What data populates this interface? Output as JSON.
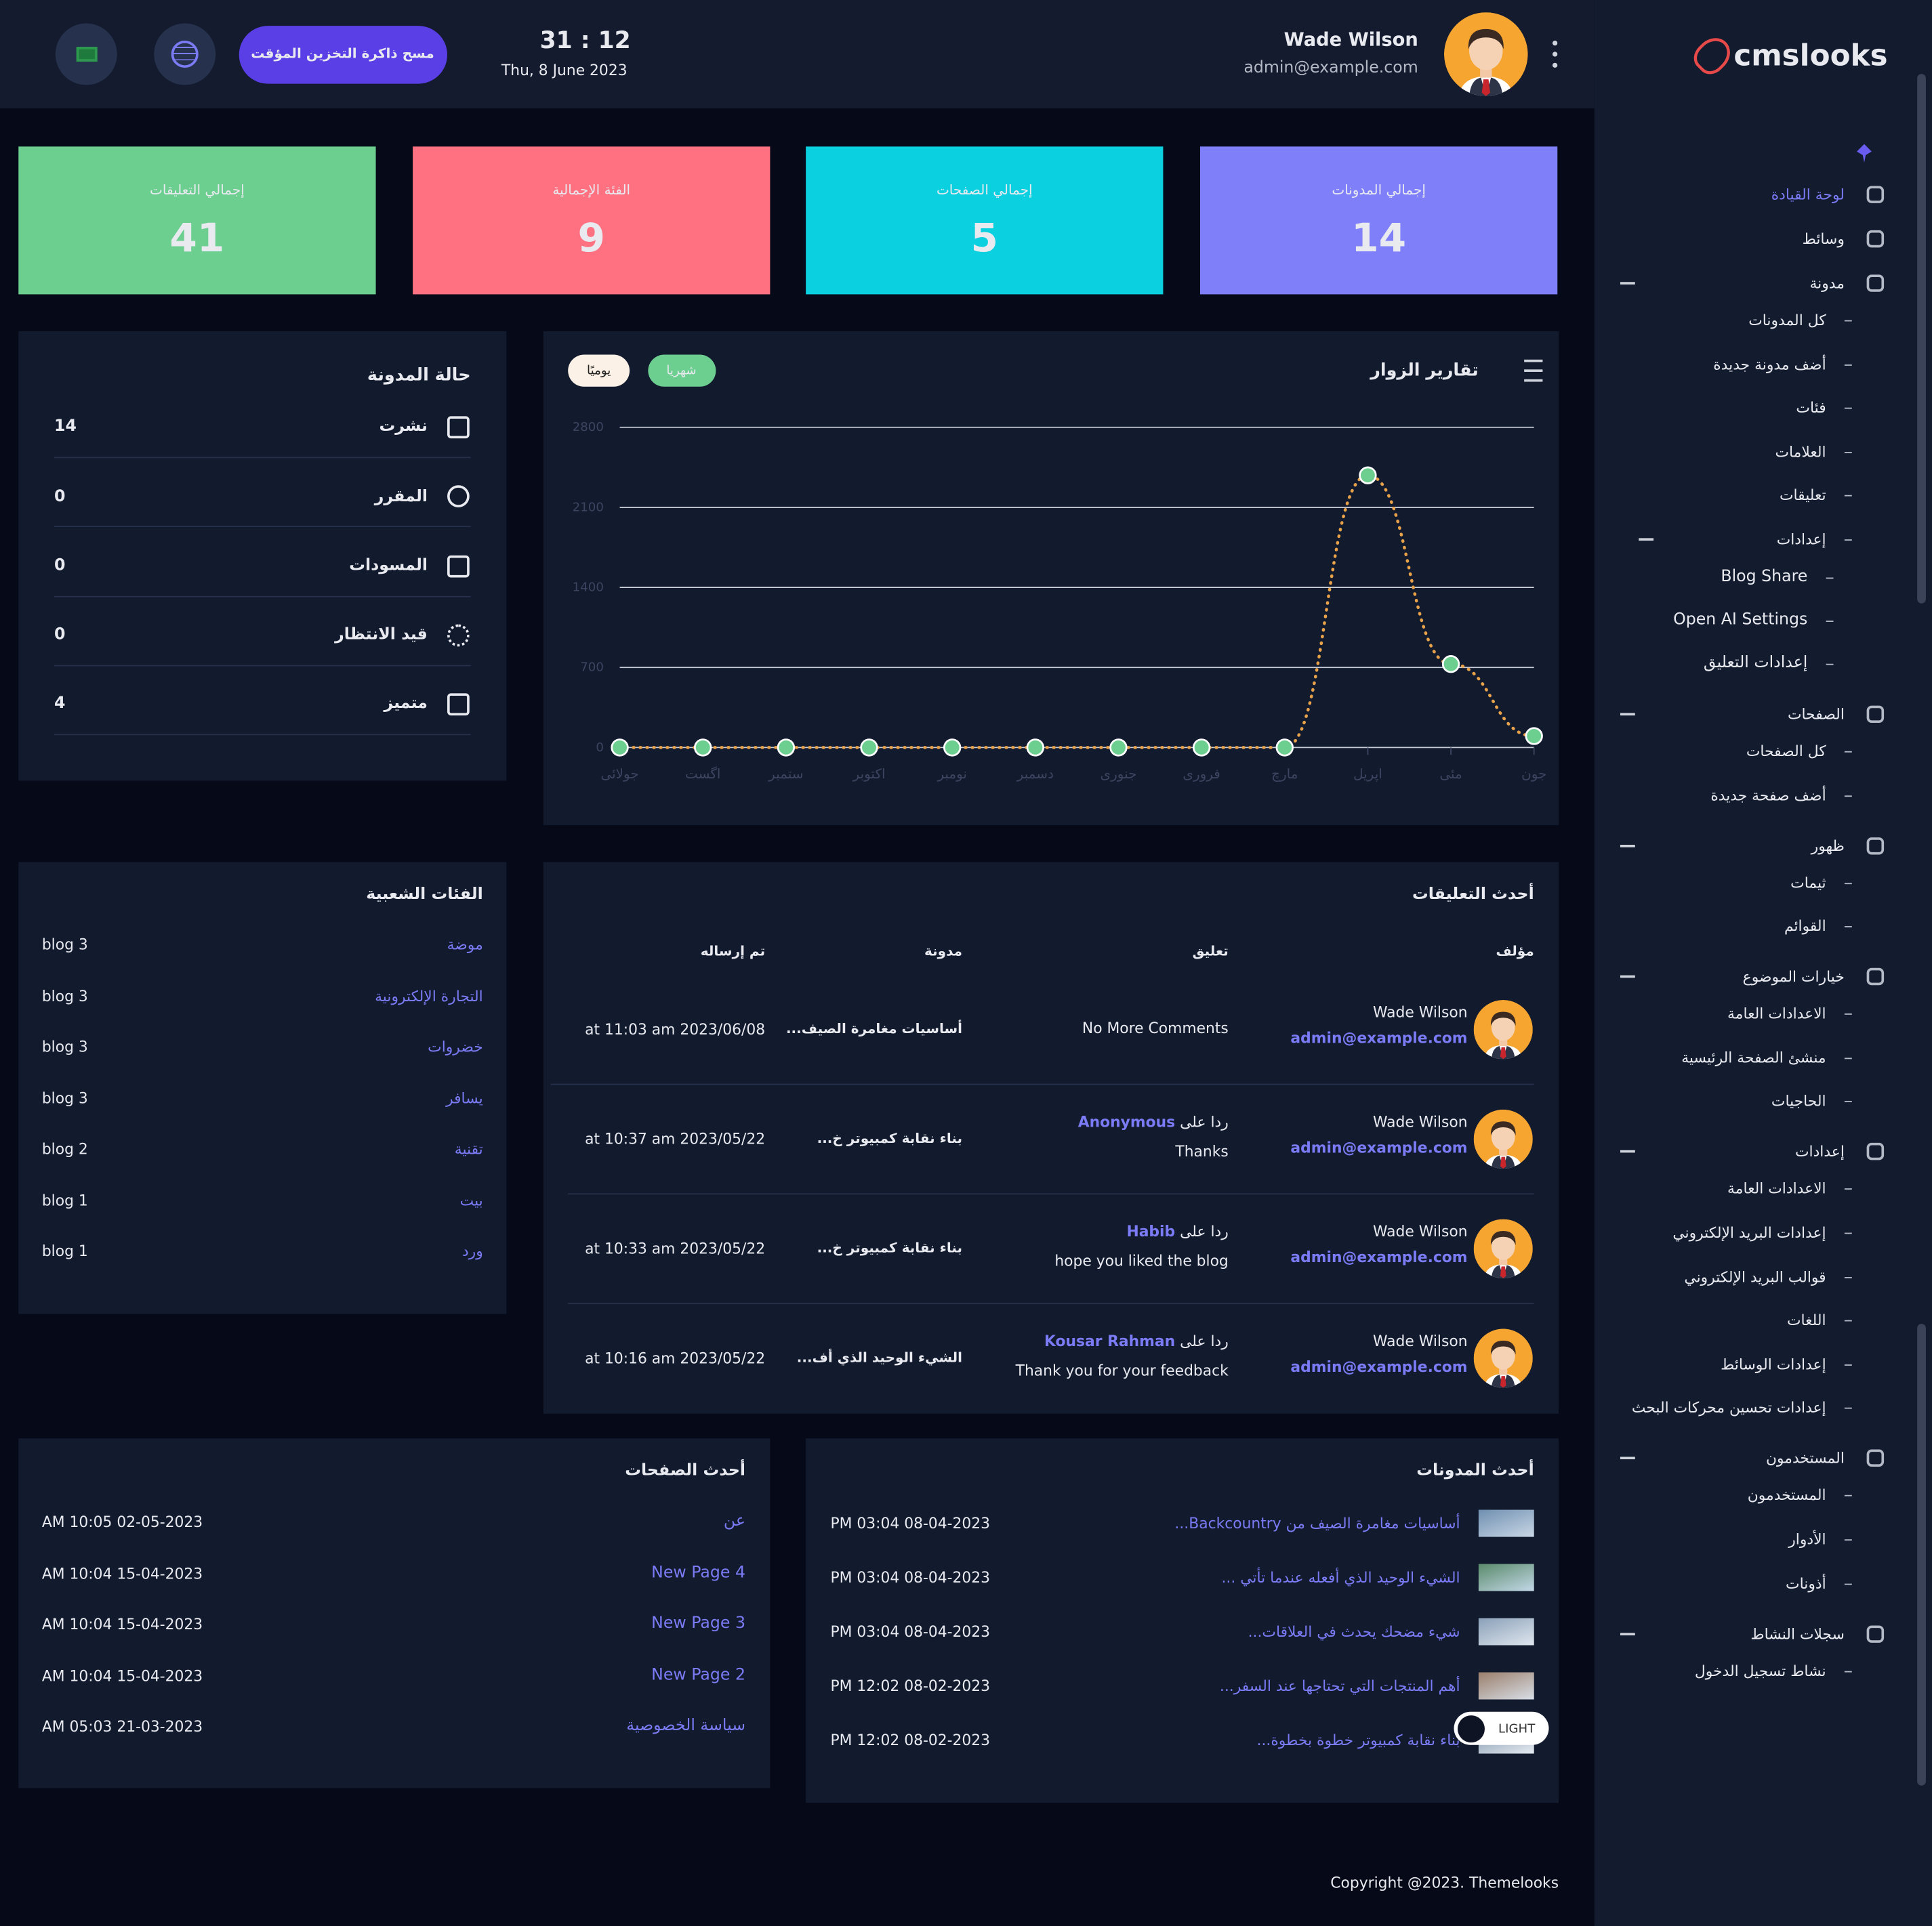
{
  "header": {
    "logo": "cmslooks",
    "clear_cache": "مسح ذاكرة التخزين المؤقت",
    "time": "31 : 12",
    "date": "Thu, 8 June 2023",
    "user_name": "Wade Wilson",
    "user_email": "admin@example.com"
  },
  "sidebar": [
    {
      "label": "لوحة القيادة"
    },
    {
      "label": "وسائط"
    },
    {
      "label": "مدونة",
      "children": [
        {
          "label": "كل المدونات"
        },
        {
          "label": "أضف مدونة جديدة"
        },
        {
          "label": "فئات"
        },
        {
          "label": "العلامات"
        },
        {
          "label": "تعليقات"
        },
        {
          "label": "إعدادات",
          "children": [
            {
              "label": "Blog Share"
            },
            {
              "label": "Open AI Settings"
            },
            {
              "label": "إعدادات التعليق"
            }
          ]
        }
      ]
    },
    {
      "label": "الصفحات",
      "children": [
        {
          "label": "كل الصفحات"
        },
        {
          "label": "أضف صفحة جديدة"
        }
      ]
    },
    {
      "label": "ظهور",
      "children": [
        {
          "label": "ثيمات"
        },
        {
          "label": "القوائم"
        }
      ]
    },
    {
      "label": "خيارات الموضوع",
      "children": [
        {
          "label": "الاعدادات العامة"
        },
        {
          "label": "منشئ الصفحة الرئيسية"
        },
        {
          "label": "الحاجيات"
        }
      ]
    },
    {
      "label": "إعدادات",
      "children": [
        {
          "label": "الاعدادات العامة"
        },
        {
          "label": "إعدادات البريد الإلكتروني"
        },
        {
          "label": "قوالب البريد الإلكتروني"
        },
        {
          "label": "اللغات"
        },
        {
          "label": "إعدادات الوسائط"
        },
        {
          "label": "إعدادات تحسين محركات البحث"
        }
      ]
    },
    {
      "label": "المستخدمون",
      "children": [
        {
          "label": "المستخدمون"
        },
        {
          "label": "الأدوار"
        },
        {
          "label": "أذونات"
        }
      ]
    },
    {
      "label": "سجلات النشاط",
      "children": [
        {
          "label": "نشاط تسجيل الدخول"
        }
      ]
    }
  ],
  "stats": [
    {
      "label": "إجمالي المدونات",
      "value": 14
    },
    {
      "label": "إجمالي الصفحات",
      "value": 5
    },
    {
      "label": "الفئة الإجمالية",
      "value": 9
    },
    {
      "label": "إجمالي التعليقات",
      "value": 41
    }
  ],
  "blog_status": {
    "title": "حالة المدونة",
    "rows": [
      {
        "label": "نشرت",
        "value": 14
      },
      {
        "label": "المقرر",
        "value": 0
      },
      {
        "label": "المسودات",
        "value": 0
      },
      {
        "label": "قيد الانتظار",
        "value": 0
      },
      {
        "label": "متميز",
        "value": 4
      }
    ]
  },
  "visitor_tabs": [
    "شهريا",
    "يوميًا"
  ],
  "chart_data": {
    "type": "line",
    "title": "تقارير الزوار",
    "categories": [
      "جولائی",
      "اگست",
      "ستمبر",
      "اکتوبر",
      "نومبر",
      "دسمبر",
      "جنوری",
      "فروری",
      "مارچ",
      "اپریل",
      "مئی",
      "جون"
    ],
    "values": [
      0,
      0,
      0,
      0,
      0,
      0,
      0,
      0,
      0,
      2380,
      730,
      100
    ],
    "color": "#e8a24a",
    "marker_color": "#6ccf8f",
    "ylim": [
      0,
      2800
    ],
    "yticks": [
      0,
      700,
      1400,
      2100,
      2800
    ],
    "grid": true
  },
  "popular_categories": {
    "title": "الفئات الشعبية",
    "rows": [
      {
        "name": "موضة",
        "count": "blog 3"
      },
      {
        "name": "التجارة الإلكترونية",
        "count": "blog 3"
      },
      {
        "name": "خضروات",
        "count": "blog 3"
      },
      {
        "name": "يسافر",
        "count": "blog 3"
      },
      {
        "name": "تقنية",
        "count": "blog 2"
      },
      {
        "name": "بيت",
        "count": "blog 1"
      },
      {
        "name": "ورد",
        "count": "blog 1"
      }
    ]
  },
  "comments": {
    "title": "أحدث التعليقات",
    "headers": [
      "مؤلف",
      "تعليق",
      "مدونة",
      "تم إرساله"
    ],
    "rows": [
      {
        "author": "Wade Wilson",
        "email": "admin@example.com",
        "comment": "No More Comments",
        "post": "أساسيات مغامرة الصيف...",
        "date": "at 11:03 am 2023/06/08"
      },
      {
        "author": "Wade Wilson",
        "email": "admin@example.com",
        "reply_prefix": "ردا على",
        "reply_to": "Anonymous",
        "comment": "Thanks",
        "post": "بناء نقابة كمبيوتر خ...",
        "date": "at 10:37 am 2023/05/22"
      },
      {
        "author": "Wade Wilson",
        "email": "admin@example.com",
        "reply_prefix": "ردا على",
        "reply_to": "Habib",
        "comment": "hope you liked the blog",
        "post": "بناء نقابة كمبيوتر خ...",
        "date": "at 10:33 am 2023/05/22"
      },
      {
        "author": "Wade Wilson",
        "email": "admin@example.com",
        "reply_prefix": "ردا على",
        "reply_to": "Kousar Rahman",
        "comment": "Thank you for your feedback",
        "post": "الشيء الوحيد الذي أف...",
        "date": "at 10:16 am 2023/05/22"
      }
    ]
  },
  "latest_pages": {
    "title": "أحدث الصفحات",
    "rows": [
      {
        "name": "عن",
        "date": "AM 10:05 02-05-2023"
      },
      {
        "name": "New Page 4",
        "date": "AM 10:04 15-04-2023"
      },
      {
        "name": "New Page 3",
        "date": "AM 10:04 15-04-2023"
      },
      {
        "name": "New Page 2",
        "date": "AM 10:04 15-04-2023"
      },
      {
        "name": "سياسة الخصوصية",
        "date": "AM 05:03 21-03-2023"
      }
    ]
  },
  "latest_posts": {
    "title": "أحدث المدونات",
    "rows": [
      {
        "title": "أساسيات مغامرة الصيف من Backcountry...",
        "date": "PM 03:04 08-04-2023"
      },
      {
        "title": "الشيء الوحيد الذي أفعله عندما تأتي ...",
        "date": "PM 03:04 08-04-2023"
      },
      {
        "title": "شيء مضحك يحدث في العلاقات...",
        "date": "PM 03:04 08-04-2023"
      },
      {
        "title": "أهم المنتجات التي تحتاجها عند السفر...",
        "date": "PM 12:02 08-02-2023"
      },
      {
        "title": "بناء نقابة كمبيوتر خطوة بخطوة...",
        "date": "PM 12:02 08-02-2023"
      }
    ]
  },
  "theme_toggle": "LIGHT",
  "footer": "Copyright @2023. Themelooks"
}
